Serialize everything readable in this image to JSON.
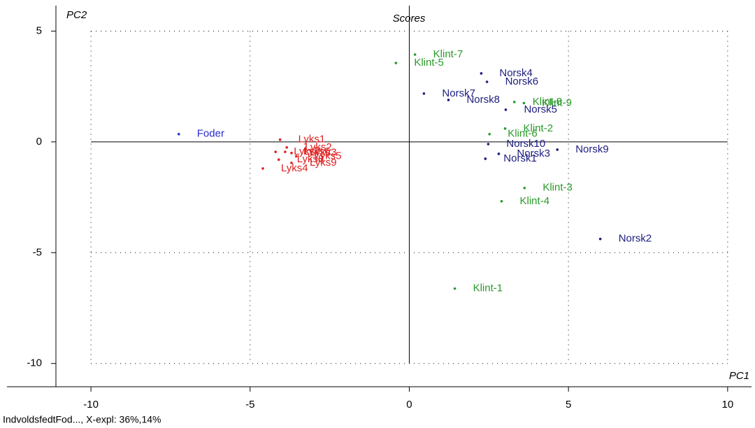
{
  "chart_data": {
    "type": "scatter",
    "title": "Scores",
    "x_label": "PC1",
    "y_label": "PC2",
    "footer": "IndvoldsfedtFod..., X-expl: 36%,14%",
    "xlim": [
      -11.1,
      10.75
    ],
    "ylim": [
      -11.05,
      6.15
    ],
    "xticks": [
      -10,
      -5,
      0,
      5,
      10
    ],
    "yticks": [
      -10,
      -5,
      0,
      5
    ],
    "grid": true,
    "series": [
      {
        "color": "#2a2ad0",
        "x": [
          -7.24
        ],
        "y": [
          0.35
        ],
        "labels": [
          "Foder"
        ]
      },
      {
        "color": "#e02020",
        "x": [
          -4.06,
          -3.85,
          -3.7,
          -4.6,
          -3.55,
          -3.9,
          -4.2,
          -4.1,
          -3.7
        ],
        "y": [
          0.1,
          -0.25,
          -0.5,
          -1.2,
          -0.65,
          -0.45,
          -0.45,
          -0.8,
          -0.95
        ],
        "labels": [
          "Lyks1",
          "Lyks2",
          "Lyks3",
          "Lyks4",
          "Lyks5",
          "Lyks6",
          "Lyks7",
          "Lyks8",
          "Lyks9"
        ]
      },
      {
        "color": "#2a9a2a",
        "x": [
          1.43,
          3.01,
          3.62,
          2.9,
          -0.42,
          2.52,
          0.18,
          3.3,
          3.6
        ],
        "y": [
          -6.62,
          0.6,
          -2.08,
          -2.68,
          3.56,
          0.35,
          3.94,
          1.8,
          1.75
        ],
        "labels": [
          "Klint-1",
          "Klint-2",
          "Klint-3",
          "Klint-4",
          "Klint-5",
          "Klint-6",
          "Klint-7",
          "Klint-8",
          "Klint-9"
        ]
      },
      {
        "color": "#1c1c80",
        "x": [
          2.39,
          6.0,
          2.81,
          2.26,
          3.03,
          2.44,
          0.46,
          1.23,
          4.65,
          2.48
        ],
        "y": [
          -0.76,
          -4.38,
          -0.54,
          3.09,
          1.45,
          2.71,
          2.18,
          1.89,
          -0.35,
          -0.1
        ],
        "labels": [
          "Norsk1",
          "Norsk2",
          "Norsk3",
          "Norsk4",
          "Norsk5",
          "Norsk6",
          "Norsk7",
          "Norsk8",
          "Norsk9",
          "Norsk10"
        ]
      }
    ]
  }
}
